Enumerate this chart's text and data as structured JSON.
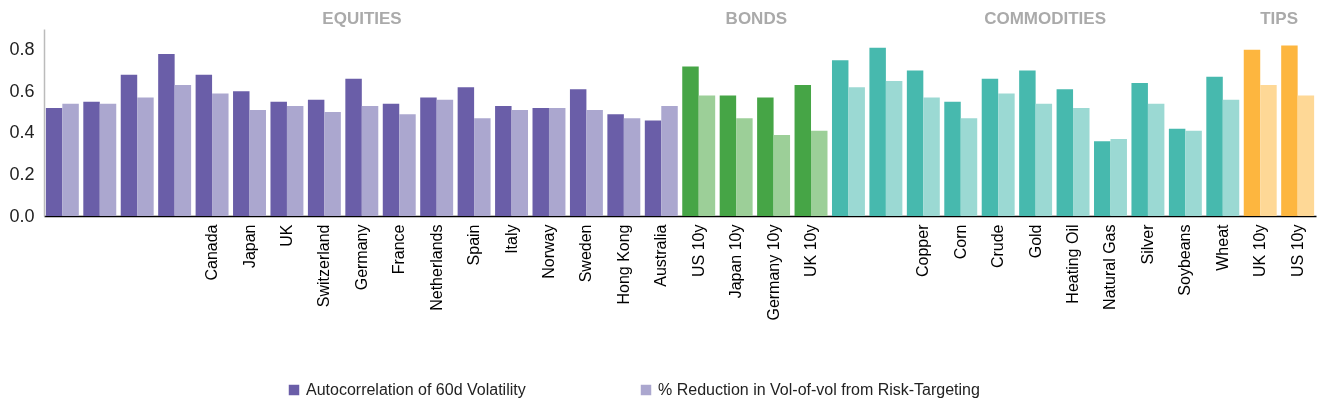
{
  "chart_data": {
    "type": "bar",
    "categories": [
      null,
      null,
      null,
      null,
      "Canada",
      "Japan",
      "UK",
      "Switzerland",
      "Germany",
      "France",
      "Netherlands",
      "Spain",
      "Italy",
      "Norway",
      "Sweden",
      "Hong Kong",
      "Australia",
      "US 10y",
      "Japan 10y",
      "Germany 10y",
      "UK 10y",
      null,
      null,
      "Copper",
      "Corn",
      "Crude",
      "Gold",
      "Heating Oil",
      "Natural Gas",
      "Silver",
      "Soybeans",
      "Wheat",
      "UK 10y",
      "US 10y"
    ],
    "series": [
      {
        "name": "Autocorrelation of 60d Volatility",
        "color": "#6a5ea8",
        "values": [
          0.52,
          0.55,
          0.68,
          0.78,
          0.68,
          0.6,
          0.55,
          0.56,
          0.66,
          0.54,
          0.57,
          0.62,
          0.53,
          0.52,
          0.61,
          0.49,
          0.46,
          0.72,
          0.58,
          0.57,
          0.63,
          0.75,
          0.81,
          0.7,
          0.55,
          0.66,
          0.7,
          0.61,
          0.36,
          0.64,
          0.42,
          0.67,
          0.8,
          0.82
        ],
        "colors": [
          "#6a5ea8",
          "#6a5ea8",
          "#6a5ea8",
          "#6a5ea8",
          "#6a5ea8",
          "#6a5ea8",
          "#6a5ea8",
          "#6a5ea8",
          "#6a5ea8",
          "#6a5ea8",
          "#6a5ea8",
          "#6a5ea8",
          "#6a5ea8",
          "#6a5ea8",
          "#6a5ea8",
          "#6a5ea8",
          "#6a5ea8",
          "#46a546",
          "#46a546",
          "#46a546",
          "#46a546",
          "#47b9ae",
          "#47b9ae",
          "#47b9ae",
          "#47b9ae",
          "#47b9ae",
          "#47b9ae",
          "#47b9ae",
          "#47b9ae",
          "#47b9ae",
          "#47b9ae",
          "#47b9ae",
          "#fdb63f",
          "#fdb63f"
        ]
      },
      {
        "name": "% Reduction in Vol-of-vol from Risk-Targeting",
        "color": "#aba7cf",
        "values": [
          0.54,
          0.54,
          0.57,
          0.63,
          0.59,
          0.51,
          0.53,
          0.5,
          0.53,
          0.49,
          0.56,
          0.47,
          0.51,
          0.52,
          0.51,
          0.47,
          0.53,
          0.58,
          0.47,
          0.39,
          0.41,
          0.62,
          0.65,
          0.57,
          0.47,
          0.59,
          0.54,
          0.52,
          0.37,
          0.54,
          0.41,
          0.56,
          0.63,
          0.58
        ],
        "colors": [
          "#aba7cf",
          "#aba7cf",
          "#aba7cf",
          "#aba7cf",
          "#aba7cf",
          "#aba7cf",
          "#aba7cf",
          "#aba7cf",
          "#aba7cf",
          "#aba7cf",
          "#aba7cf",
          "#aba7cf",
          "#aba7cf",
          "#aba7cf",
          "#aba7cf",
          "#aba7cf",
          "#aba7cf",
          "#9ccf98",
          "#9ccf98",
          "#9ccf98",
          "#9ccf98",
          "#9bd9d3",
          "#9bd9d3",
          "#9bd9d3",
          "#9bd9d3",
          "#9bd9d3",
          "#9bd9d3",
          "#9bd9d3",
          "#9bd9d3",
          "#9bd9d3",
          "#9bd9d3",
          "#9bd9d3",
          "#fed896",
          "#fed896"
        ]
      }
    ],
    "annotations": [
      "EQUITIES",
      "BONDS",
      "COMMODITIES",
      "TIPS"
    ],
    "ylim": [
      0,
      0.9
    ],
    "yticks": [
      {
        "value": 0,
        "label": "0.0"
      },
      0.2,
      0.4,
      0.6,
      0.8
    ],
    "legend": "bottom"
  }
}
